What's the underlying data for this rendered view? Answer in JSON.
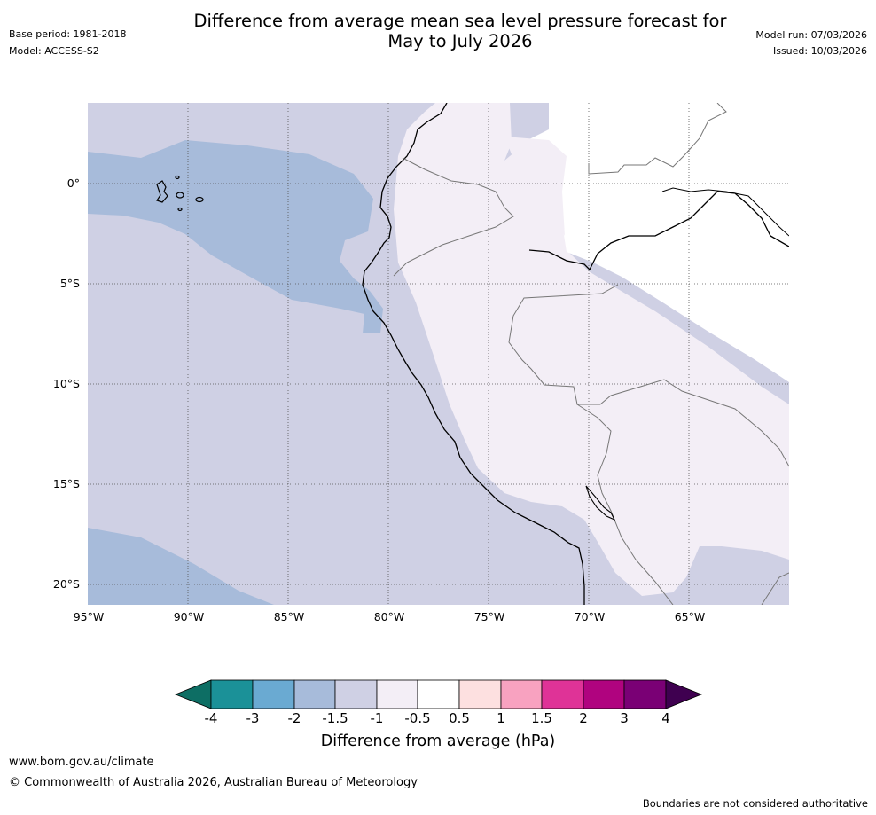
{
  "header": {
    "title_line1": "Difference from average mean sea level pressure forecast for",
    "title_line2": "May to July 2026",
    "base_period": "Base period: 1981-2018",
    "model": "Model: ACCESS-S2",
    "model_run": "Model run: 07/03/2026",
    "issued": "Issued: 10/03/2026"
  },
  "map": {
    "region": "Western South America / Eastern Pacific",
    "lat_labels": [
      "0°",
      "5°S",
      "10°S",
      "15°S",
      "20°S"
    ],
    "lon_labels": [
      "95°W",
      "90°W",
      "85°W",
      "80°W",
      "75°W",
      "70°W",
      "65°W"
    ]
  },
  "colorbar": {
    "label": "Difference from average (hPa)",
    "ticks": [
      "-4",
      "-3",
      "-2",
      "-1.5",
      "-1",
      "-0.5",
      "0.5",
      "1",
      "1.5",
      "2",
      "3",
      "4"
    ],
    "colors": {
      "lt_-4": "#0d6e64",
      "-4_-3": "#1b9198",
      "-3_-2": "#6aaad2",
      "-2_-1.5": "#a7bbda",
      "-1.5_-1": "#cfd0e4",
      "-1_-0.5": "#f3eef6",
      "-0.5_0.5": "#ffffff",
      "0.5_1": "#fde0e0",
      "1_1.5": "#f8a2c0",
      "1.5_2": "#df3397",
      "2_3": "#b0037f",
      "3_4": "#7a0075",
      "gt_4": "#3f0050"
    }
  },
  "footer": {
    "url": "www.bom.gov.au/climate",
    "copyright": "© Commonwealth of Australia 2026, Australian Bureau of Meteorology",
    "disclaimer": "Boundaries are not considered authoritative"
  }
}
